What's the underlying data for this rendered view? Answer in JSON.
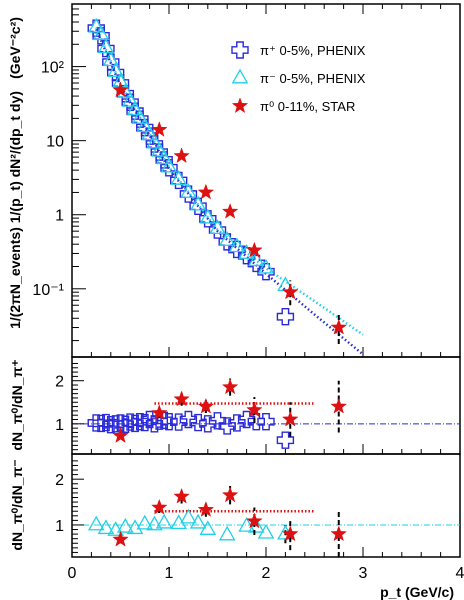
{
  "chart_data": [
    {
      "type": "scatter",
      "panel": "spectra",
      "ylabel": "1/(2πN_events) 1/(p_t) dN²/(dp_t dy)",
      "yunit": "(GeV⁻²c²)",
      "yscale": "log",
      "xlim": [
        0,
        4
      ],
      "ylim": [
        0.012,
        700
      ],
      "ytick_labels": [
        "10⁻¹",
        "1",
        "10",
        "10²"
      ],
      "ytick_values": [
        0.1,
        1,
        10,
        100
      ],
      "legend_position": "top-right",
      "series": [
        {
          "name": "π⁺ 0-5%, PHENIX",
          "color": "#2a2ad8",
          "marker": "open-cross",
          "x": [
            0.25,
            0.3,
            0.35,
            0.4,
            0.45,
            0.5,
            0.55,
            0.6,
            0.65,
            0.7,
            0.75,
            0.8,
            0.85,
            0.9,
            0.95,
            1.0,
            1.1,
            1.2,
            1.3,
            1.4,
            1.5,
            1.6,
            1.7,
            1.8,
            1.9,
            2.0,
            2.2
          ],
          "y": [
            330,
            260,
            175,
            115,
            83,
            60,
            43,
            33,
            25,
            19.5,
            15,
            11.5,
            9.0,
            7.0,
            5.5,
            4.3,
            2.9,
            1.9,
            1.3,
            0.88,
            0.62,
            0.43,
            0.34,
            0.28,
            0.22,
            0.17,
            0.042
          ]
        },
        {
          "name": "π⁻ 0-5%, PHENIX",
          "color": "#20d0e8",
          "marker": "open-triangle",
          "x": [
            0.25,
            0.3,
            0.35,
            0.4,
            0.45,
            0.5,
            0.55,
            0.6,
            0.65,
            0.7,
            0.75,
            0.8,
            0.85,
            0.9,
            0.95,
            1.0,
            1.1,
            1.2,
            1.3,
            1.4,
            1.5,
            1.6,
            1.7,
            1.8,
            1.9,
            2.0,
            2.2
          ],
          "y": [
            340,
            270,
            180,
            120,
            86,
            62,
            45,
            34,
            26,
            20,
            15.5,
            12,
            9.3,
            7.2,
            5.7,
            4.4,
            3.0,
            2.0,
            1.35,
            0.9,
            0.65,
            0.45,
            0.37,
            0.3,
            0.24,
            0.19,
            0.11
          ]
        },
        {
          "name": "π⁰ 0-11%, STAR",
          "color": "#dd1111",
          "marker": "filled-star",
          "x": [
            0.5,
            0.9,
            1.13,
            1.38,
            1.63,
            1.88,
            2.25,
            2.75
          ],
          "y": [
            48,
            14,
            6.2,
            2.0,
            1.1,
            0.33,
            0.09,
            0.03
          ],
          "yerr_low": [
            0,
            0,
            0,
            0,
            0,
            0,
            0.03,
            0.012
          ],
          "yerr_high": [
            0,
            0,
            0,
            0,
            0,
            0,
            0.04,
            0.015
          ]
        }
      ],
      "fit_lines": [
        {
          "color": "#20d0e8",
          "style": "dotted",
          "x": [
            0.25,
            0.5,
            1.0,
            1.5,
            2.0,
            2.5,
            3.0
          ],
          "y": [
            340,
            58,
            4.4,
            0.63,
            0.19,
            0.068,
            0.024
          ]
        },
        {
          "color": "#2a2ad8",
          "style": "dotted",
          "x": [
            0.25,
            0.5,
            1.0,
            1.5,
            2.0,
            2.5,
            3.0
          ],
          "y": [
            320,
            55,
            4.2,
            0.6,
            0.16,
            0.045,
            0.013
          ]
        }
      ]
    },
    {
      "type": "scatter",
      "panel": "ratio-pi-plus",
      "ylabel": "dN_π⁰/dN_π⁺",
      "xlim": [
        0,
        4
      ],
      "ylim": [
        0.3,
        2.55
      ],
      "ytick_values": [
        1,
        2
      ],
      "ytick_labels": [
        "1",
        "2"
      ],
      "reference_line": 1,
      "series": [
        {
          "name": "π⁺",
          "color": "#2a2ad8",
          "marker": "open-cross",
          "x": [
            0.25,
            0.3,
            0.35,
            0.4,
            0.45,
            0.5,
            0.55,
            0.6,
            0.65,
            0.7,
            0.75,
            0.8,
            0.85,
            0.9,
            0.95,
            1.0,
            1.1,
            1.2,
            1.3,
            1.4,
            1.5,
            1.6,
            1.7,
            1.8,
            1.9,
            2.0,
            2.2
          ],
          "y": [
            1.02,
            1.01,
            1.03,
            0.98,
            1.0,
            1.02,
            0.99,
            1.04,
            1.01,
            1.05,
            1.03,
            1.1,
            1.0,
            1.06,
            1.08,
            1.05,
            1.04,
            1.1,
            1.03,
            1.0,
            1.07,
            0.95,
            1.02,
            1.1,
            1.05,
            1.05,
            0.62
          ]
        },
        {
          "name": "π⁰",
          "color": "#dd1111",
          "marker": "filled-star",
          "x": [
            0.5,
            0.9,
            1.13,
            1.38,
            1.63,
            1.88,
            2.25,
            2.75
          ],
          "y": [
            0.72,
            1.25,
            1.57,
            1.4,
            1.85,
            1.32,
            1.1,
            1.4
          ],
          "yerr_low": [
            0.08,
            0.12,
            0.15,
            0.15,
            0.2,
            0.3,
            0.4,
            0.6
          ],
          "yerr_high": [
            0.08,
            0.12,
            0.15,
            0.15,
            0.2,
            0.3,
            0.4,
            0.6
          ]
        }
      ],
      "average_line": {
        "color": "#dd1111",
        "x": [
          0.85,
          2.5
        ],
        "y": 1.47
      }
    },
    {
      "type": "scatter",
      "panel": "ratio-pi-minus",
      "ylabel": "dN_π⁰/dN_π⁻",
      "xlabel": "p_t (GeV/c)",
      "xlim": [
        0,
        4
      ],
      "ylim": [
        0.3,
        2.55
      ],
      "xtick_values": [
        0,
        1,
        2,
        3,
        4
      ],
      "xtick_labels": [
        "0",
        "1",
        "2",
        "3",
        "4"
      ],
      "ytick_values": [
        1,
        2
      ],
      "ytick_labels": [
        "1",
        "2"
      ],
      "reference_line": 1,
      "series": [
        {
          "name": "π⁻",
          "color": "#20d0e8",
          "marker": "open-triangle",
          "x": [
            0.25,
            0.35,
            0.45,
            0.55,
            0.65,
            0.75,
            0.85,
            0.95,
            1.1,
            1.2,
            1.3,
            1.4,
            1.6,
            1.8,
            1.9,
            2.0,
            2.2
          ],
          "y": [
            1.0,
            0.92,
            0.88,
            0.95,
            0.92,
            1.02,
            1.0,
            1.04,
            1.03,
            1.15,
            1.04,
            0.9,
            0.78,
            0.97,
            0.95,
            0.82,
            0.8
          ],
          "yerr_low": [
            0,
            0,
            0,
            0,
            0,
            0,
            0,
            0,
            0,
            0,
            0,
            0,
            0,
            0,
            0,
            0,
            0.2
          ],
          "yerr_high": [
            0,
            0,
            0,
            0,
            0,
            0,
            0,
            0,
            0,
            0,
            0,
            0,
            0,
            0,
            0,
            0,
            0.2
          ]
        },
        {
          "name": "π⁰",
          "color": "#dd1111",
          "marker": "filled-star",
          "x": [
            0.5,
            0.9,
            1.13,
            1.38,
            1.63,
            1.88,
            2.25,
            2.75
          ],
          "y": [
            0.68,
            1.38,
            1.62,
            1.33,
            1.65,
            1.08,
            0.8,
            0.8
          ],
          "yerr_low": [
            0.08,
            0.12,
            0.15,
            0.15,
            0.2,
            0.3,
            0.35,
            0.5
          ],
          "yerr_high": [
            0.08,
            0.12,
            0.15,
            0.15,
            0.2,
            0.3,
            0.35,
            0.5
          ]
        }
      ],
      "average_line": {
        "color": "#dd1111",
        "x": [
          0.85,
          2.5
        ],
        "y": 1.3
      }
    }
  ]
}
